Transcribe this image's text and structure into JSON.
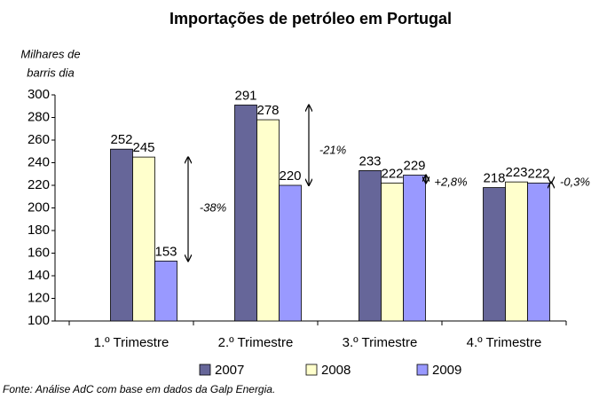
{
  "chart_data": {
    "type": "bar",
    "title": "Importações de petróleo em Portugal",
    "y_label": [
      "Milhares de",
      "barris dia"
    ],
    "categories": [
      "1.º Trimestre",
      "2.º Trimestre",
      "3.º Trimestre",
      "4.º Trimestre"
    ],
    "series": [
      {
        "name": "2007",
        "color": "#666699",
        "values": [
          252,
          291,
          233,
          218
        ]
      },
      {
        "name": "2008",
        "color": "#ffffcc",
        "values": [
          245,
          278,
          222,
          223
        ]
      },
      {
        "name": "2009",
        "color": "#9999ff",
        "values": [
          153,
          220,
          229,
          222
        ]
      }
    ],
    "ylim": [
      100,
      300
    ],
    "yticks": [
      100,
      120,
      140,
      160,
      180,
      200,
      220,
      240,
      260,
      280,
      300
    ],
    "annotations": [
      "-38%",
      "-21%",
      "+2,8%",
      "-0,3%"
    ],
    "source": "Fonte: Análise AdC com base em dados da Galp Energia.",
    "legend": "bottom"
  }
}
